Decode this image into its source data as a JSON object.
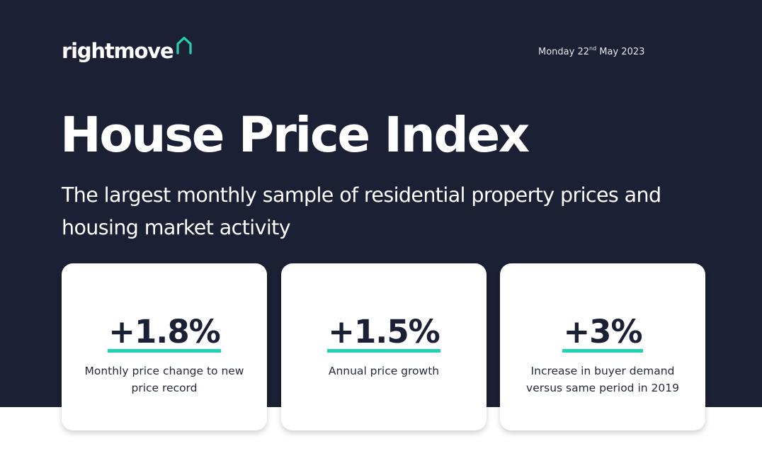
{
  "brand": {
    "name": "rightmove",
    "accent_color": "#1fd3b2",
    "background_color": "#1c2034",
    "icon": "house-outline-icon"
  },
  "header": {
    "date_prefix": "Monday 22",
    "date_suffix": "nd",
    "date_rest": " May 2023"
  },
  "title": "House Price Index",
  "subtitle": "The largest monthly sample of residential property prices and housing market activity",
  "stats": [
    {
      "value": "+1.8%",
      "description": "Monthly price change to new price record"
    },
    {
      "value": "+1.5%",
      "description": "Annual price growth"
    },
    {
      "value": "+3%",
      "description": "Increase in buyer demand versus same period in 2019"
    }
  ]
}
